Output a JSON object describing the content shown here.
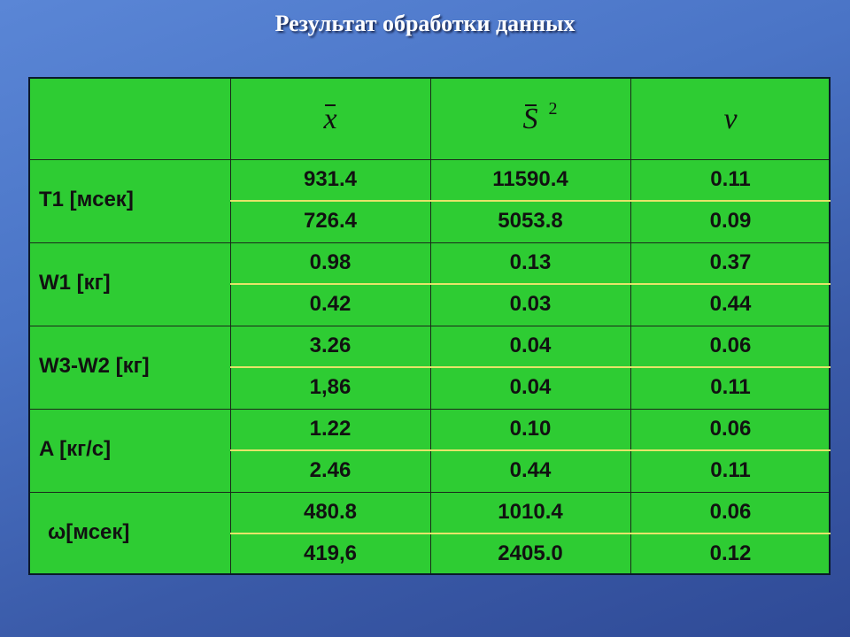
{
  "title": "Результат обработки данных",
  "headers": {
    "mean": "x",
    "variance": "S",
    "variance_power": "2",
    "coef": "ν"
  },
  "rows": [
    {
      "label": "T1 [мсек]",
      "values": [
        [
          "931.4",
          "11590.4",
          "0.11"
        ],
        [
          "726.4",
          "5053.8",
          "0.09"
        ]
      ]
    },
    {
      "label": "W1 [кг]",
      "values": [
        [
          "0.98",
          "0.13",
          "0.37"
        ],
        [
          "0.42",
          "0.03",
          "0.44"
        ]
      ]
    },
    {
      "label": "W3-W2 [кг]",
      "values": [
        [
          "3.26",
          "0.04",
          "0.06"
        ],
        [
          "1,86",
          "0.04",
          "0.11"
        ]
      ]
    },
    {
      "label": "A [кг/с]",
      "values": [
        [
          "1.22",
          "0.10",
          "0.06"
        ],
        [
          "2.46",
          "0.44",
          "0.11"
        ]
      ]
    },
    {
      "label": "ω[мсек]",
      "values": [
        [
          "480.8",
          "1010.4",
          "0.06"
        ],
        [
          "419,6",
          "2405.0",
          "0.12"
        ]
      ]
    }
  ],
  "colors": {
    "table_fill": "#2ecc33",
    "row_separator": "#e6e46a",
    "title": "#ffffff"
  }
}
